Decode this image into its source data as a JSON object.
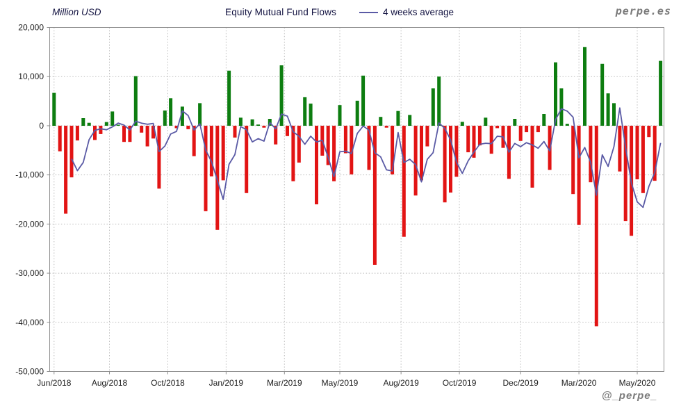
{
  "header": {
    "unit_label": "Million USD",
    "title": "Equity Mutual Fund Flows",
    "legend_label": "4 weeks average",
    "site_watermark": "perpe.es"
  },
  "footer": {
    "handle_watermark": "@_perpe_"
  },
  "chart_data": {
    "type": "bar",
    "title": "Equity Mutual Fund Flows",
    "ylabel": "Million USD",
    "ylim": [
      -50000,
      20000
    ],
    "y_ticks": [
      20000,
      10000,
      0,
      -10000,
      -20000,
      -30000,
      -40000,
      -50000
    ],
    "grid": "dotted horizontal and vertical",
    "legend_position": "top",
    "frequency": "weekly",
    "bar_series_name": "Weekly equity mutual fund flows (Million USD)",
    "line_series_name": "4 weeks average",
    "average_window": 4,
    "x_ticks": [
      {
        "label": "Jun/2018",
        "week": 0
      },
      {
        "label": "Aug/2018",
        "week": 9.5
      },
      {
        "label": "Oct/2018",
        "week": 19.5
      },
      {
        "label": "Jan/2019",
        "week": 29.5
      },
      {
        "label": "Mar/2019",
        "week": 39.5
      },
      {
        "label": "May/2019",
        "week": 49
      },
      {
        "label": "Aug/2019",
        "week": 59.5
      },
      {
        "label": "Oct/2019",
        "week": 69.5
      },
      {
        "label": "Dec/2019",
        "week": 80
      },
      {
        "label": "Mar/2020",
        "week": 90
      },
      {
        "label": "May/2020",
        "week": 100
      }
    ],
    "weekly_values": [
      6700,
      -5200,
      -17900,
      -10500,
      -3000,
      1550,
      600,
      -2900,
      -1700,
      750,
      2900,
      200,
      -3300,
      -3300,
      10100,
      -1400,
      -4200,
      -2600,
      -12800,
      3100,
      5600,
      -500,
      3900,
      -700,
      -6200,
      4600,
      -17400,
      -10300,
      -21200,
      -11100,
      11200,
      -2400,
      1650,
      -13700,
      1300,
      250,
      -400,
      1400,
      -3800,
      12300,
      -2100,
      -11300,
      -7500,
      5800,
      4500,
      -16000,
      -6100,
      -8000,
      -11300,
      4200,
      -5600,
      -9900,
      5100,
      10200,
      -9000,
      -28300,
      1800,
      -400,
      -9900,
      3000,
      -22600,
      2200,
      -14200,
      -11100,
      -4200,
      7600,
      10000,
      -15600,
      -13600,
      -10400,
      800,
      -5400,
      -6500,
      -4000,
      1650,
      -5700,
      -500,
      -4500,
      -10800,
      1400,
      -3100,
      -1300,
      -12600,
      -1300,
      2400,
      -9000,
      12900,
      7600,
      400,
      -13900,
      -20200,
      16000,
      -11500,
      -40800,
      12600,
      6600,
      4600,
      -9300,
      -19400,
      -22400,
      -10900,
      -13700,
      -2300,
      -11200,
      13200
    ],
    "colors": {
      "positive_bar": "#0d7d10",
      "negative_bar": "#e21414",
      "average_line": "#5a5aa5",
      "plot_border": "#8f8f8f",
      "gridline": "#bcbcbc",
      "watermark": "#7a7a7a",
      "heading_text": "#121240",
      "axis_text": "#202020"
    }
  }
}
